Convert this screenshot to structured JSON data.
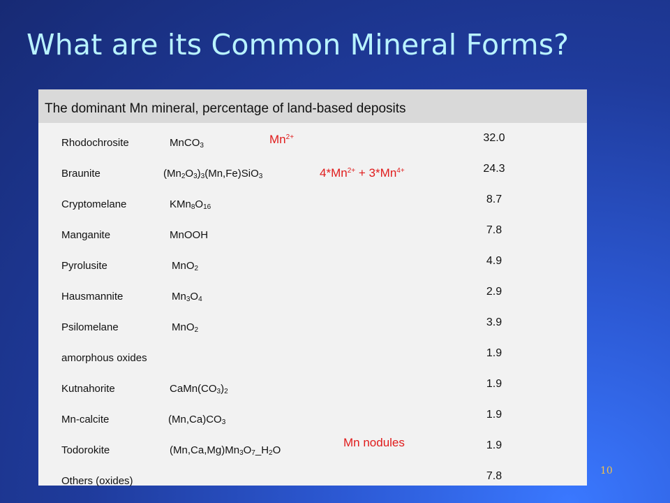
{
  "slide": {
    "title": "What are its Common Mineral Forms?",
    "page_number": "10"
  },
  "table": {
    "header": "The dominant Mn mineral, percentage of land-based deposits",
    "rows": [
      {
        "mineral": "Rhodochrosite",
        "formula": "MnCO3",
        "value": "32.0"
      },
      {
        "mineral": "Braunite",
        "formula": "(Mn2O3)3(Mn,Fe)SiO3",
        "value": "24.3"
      },
      {
        "mineral": "Cryptomelane",
        "formula": "KMn8O16",
        "value": "8.7"
      },
      {
        "mineral": "Manganite",
        "formula": "MnOOH",
        "value": "7.8"
      },
      {
        "mineral": "Pyrolusite",
        "formula": "MnO2",
        "value": "4.9"
      },
      {
        "mineral": "Hausmannite",
        "formula": "Mn3O4",
        "value": "2.9"
      },
      {
        "mineral": "Psilomelane",
        "formula": "MnO2",
        "value": "3.9"
      },
      {
        "mineral": "amorphous oxides",
        "formula": "",
        "value": "1.9"
      },
      {
        "mineral": "Kutnahorite",
        "formula": "CaMn(CO3)2",
        "value": "1.9"
      },
      {
        "mineral": "Mn-calcite",
        "formula": "(Mn,Ca)CO3",
        "value": "1.9"
      },
      {
        "mineral": "Todorokite",
        "formula": "(Mn,Ca,Mg)Mn3O7_H2O",
        "value": "1.9"
      },
      {
        "mineral": "Others (oxides)",
        "formula": "",
        "value": "7.8"
      }
    ]
  },
  "annotations": {
    "mn2": "Mn2+",
    "mixed_valence": "4*Mn2+ + 3*Mn4+",
    "nodules": "Mn nodules"
  },
  "colors": {
    "title": "#b9f3ff",
    "annotation": "#e01b1b",
    "page_number": "#f2c24a",
    "table_bg": "#f2f2f2",
    "header_bg": "#d9d9d9"
  }
}
